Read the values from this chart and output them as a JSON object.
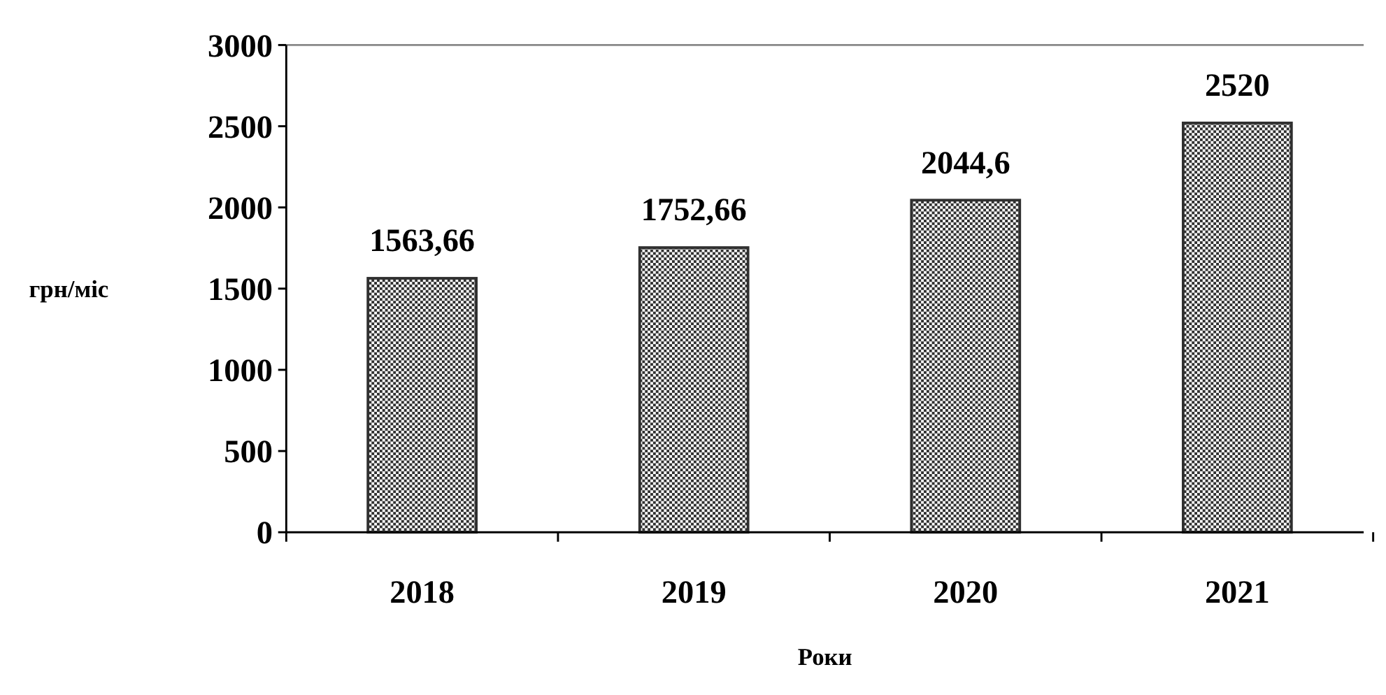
{
  "chart_data": {
    "type": "bar",
    "xlabel": "Роки",
    "ylabel": "грн/міс",
    "categories": [
      "2018",
      "2019",
      "2020",
      "2021"
    ],
    "values": [
      1563.66,
      1752.66,
      2044.6,
      2520
    ],
    "value_labels": [
      "1563,66",
      "1752,66",
      "2044,6",
      "2520"
    ],
    "color": "#303030",
    "ylim": [
      0,
      3000
    ],
    "yticks": [
      0,
      500,
      1000,
      1500,
      2000,
      2500,
      3000
    ],
    "grid": false
  }
}
